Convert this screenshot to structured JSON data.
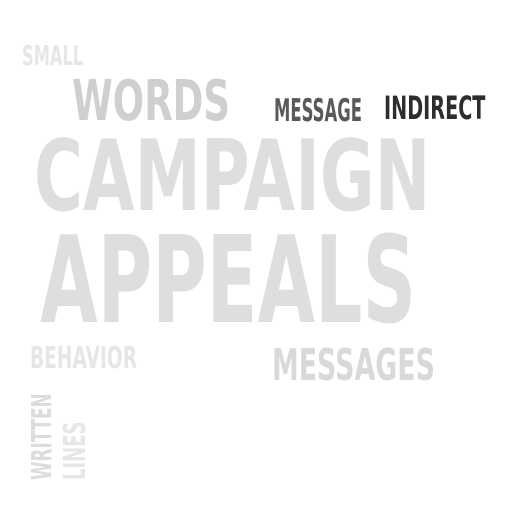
{
  "words": {
    "small": "SMALL",
    "words": "WORDS",
    "message": "MESSAGE",
    "indirect": "INDIRECT",
    "campaign": "CAMPAIGN",
    "appeals": "APPEALS",
    "behavior": "BEHAVIOR",
    "messages": "MESSAGES",
    "written": "WRITTEN",
    "lines": "LINES"
  },
  "colors": {
    "background": "#ffffff",
    "dark_word": "#2d2d2d",
    "mid_dark_word": "#595959",
    "light_word": "#dedede"
  }
}
